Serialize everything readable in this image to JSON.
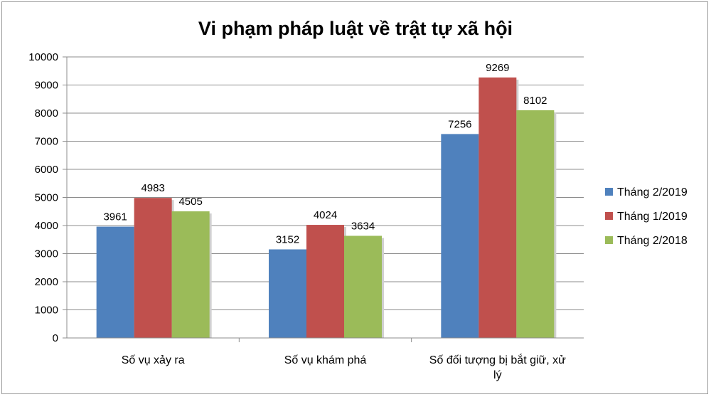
{
  "chart_data": {
    "type": "bar",
    "title": "Vi phạm pháp luật về trật tự xã hội",
    "categories": [
      [
        "Số vụ xảy ra"
      ],
      [
        "Số vụ khám phá"
      ],
      [
        "Số đối tượng bị bắt giữ, xử",
        "lý"
      ]
    ],
    "series": [
      {
        "name": "Tháng 2/2019",
        "color": "#4F81BD",
        "values": [
          3961,
          3152,
          7256
        ]
      },
      {
        "name": "Tháng 1/2019",
        "color": "#C0504D",
        "values": [
          4983,
          4024,
          9269
        ]
      },
      {
        "name": "Tháng 2/2018",
        "color": "#9BBB59",
        "values": [
          4505,
          3634,
          8102
        ]
      }
    ],
    "ylim": [
      0,
      10000
    ],
    "yticks": [
      "0",
      "1000",
      "2000",
      "3000",
      "4000",
      "5000",
      "6000",
      "7000",
      "8000",
      "9000",
      "10000"
    ],
    "grid": true,
    "legend_position": "right",
    "data_labels": true
  }
}
